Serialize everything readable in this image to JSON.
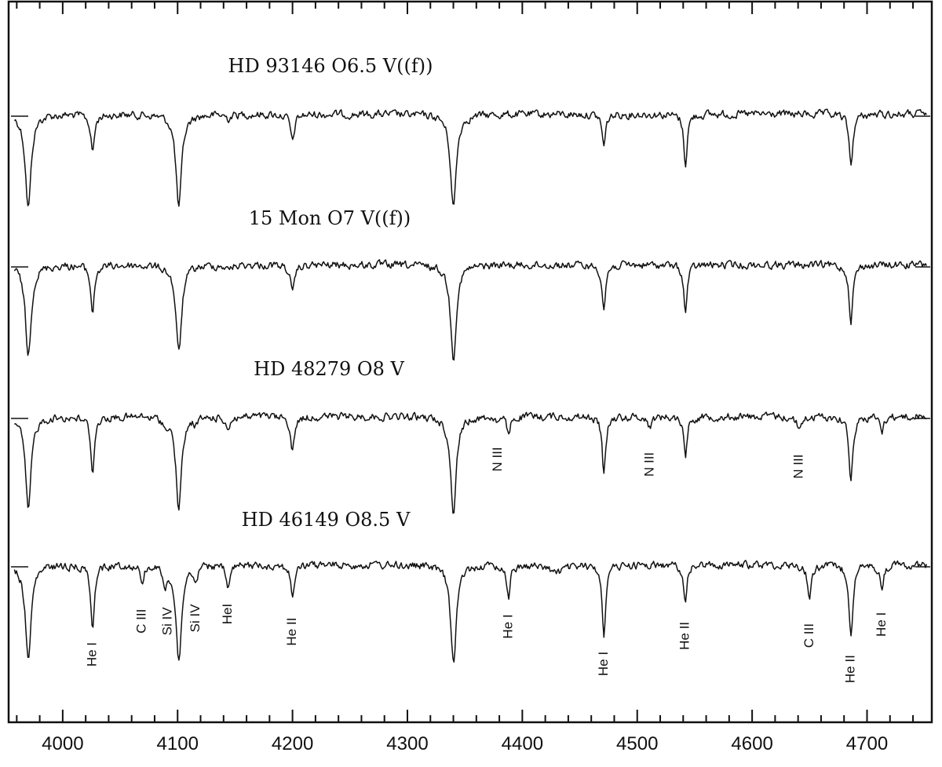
{
  "chart_data": {
    "type": "line",
    "xlim": [
      3955,
      4755
    ],
    "x_ticks": [
      4000,
      4100,
      4200,
      4300,
      4400,
      4500,
      4600,
      4700
    ],
    "x_tick_labels": [
      "4000",
      "4100",
      "4200",
      "4300",
      "4400",
      "4500",
      "4600",
      "4700"
    ],
    "xlabel": "",
    "ylabel": "",
    "grid": false,
    "series": [
      {
        "name": "HD 93146  O6.5 V((f))",
        "lines": [
          {
            "x": 3970,
            "depth": 0.9,
            "width": 3.0
          },
          {
            "x": 4026,
            "depth": 0.36,
            "width": 2.0
          },
          {
            "x": 4101,
            "depth": 0.9,
            "width": 3.0
          },
          {
            "x": 4144,
            "depth": 0.04,
            "width": 2.0
          },
          {
            "x": 4200,
            "depth": 0.27,
            "width": 2.0
          },
          {
            "x": 4340,
            "depth": 0.9,
            "width": 3.0
          },
          {
            "x": 4471,
            "depth": 0.31,
            "width": 1.8
          },
          {
            "x": 4542,
            "depth": 0.48,
            "width": 1.8
          },
          {
            "x": 4686,
            "depth": 0.49,
            "width": 2.0
          }
        ]
      },
      {
        "name": "15 Mon  O7 V((f))",
        "lines": [
          {
            "x": 3970,
            "depth": 0.88,
            "width": 3.0
          },
          {
            "x": 4026,
            "depth": 0.45,
            "width": 2.0
          },
          {
            "x": 4101,
            "depth": 0.85,
            "width": 3.0
          },
          {
            "x": 4144,
            "depth": 0.05,
            "width": 2.0
          },
          {
            "x": 4200,
            "depth": 0.29,
            "width": 2.0
          },
          {
            "x": 4340,
            "depth": 0.9,
            "width": 3.0
          },
          {
            "x": 4471,
            "depth": 0.43,
            "width": 1.8
          },
          {
            "x": 4542,
            "depth": 0.46,
            "width": 1.8
          },
          {
            "x": 4686,
            "depth": 0.53,
            "width": 2.0
          }
        ]
      },
      {
        "name": "HD 48279  O8 V",
        "lines": [
          {
            "x": 3970,
            "depth": 0.9,
            "width": 3.0
          },
          {
            "x": 4026,
            "depth": 0.52,
            "width": 2.0
          },
          {
            "x": 4089,
            "depth": 0.08,
            "width": 1.5
          },
          {
            "x": 4101,
            "depth": 0.88,
            "width": 3.0
          },
          {
            "x": 4116,
            "depth": 0.06,
            "width": 1.5
          },
          {
            "x": 4144,
            "depth": 0.12,
            "width": 2.0
          },
          {
            "x": 4200,
            "depth": 0.34,
            "width": 2.0
          },
          {
            "x": 4340,
            "depth": 0.92,
            "width": 3.0
          },
          {
            "x": 4379,
            "depth": 0.05,
            "width": 1.5
          },
          {
            "x": 4388,
            "depth": 0.18,
            "width": 1.8
          },
          {
            "x": 4471,
            "depth": 0.57,
            "width": 1.8
          },
          {
            "x": 4511,
            "depth": 0.1,
            "width": 2.0
          },
          {
            "x": 4542,
            "depth": 0.37,
            "width": 1.8
          },
          {
            "x": 4641,
            "depth": 0.12,
            "width": 2.5
          },
          {
            "x": 4686,
            "depth": 0.6,
            "width": 2.0
          },
          {
            "x": 4713,
            "depth": 0.16,
            "width": 1.6
          }
        ]
      },
      {
        "name": "HD 46149  O8.5 V",
        "lines": [
          {
            "x": 3970,
            "depth": 0.92,
            "width": 3.0
          },
          {
            "x": 4026,
            "depth": 0.57,
            "width": 2.0
          },
          {
            "x": 4069,
            "depth": 0.18,
            "width": 1.5
          },
          {
            "x": 4089,
            "depth": 0.2,
            "width": 1.5
          },
          {
            "x": 4101,
            "depth": 0.92,
            "width": 3.0
          },
          {
            "x": 4116,
            "depth": 0.17,
            "width": 1.5
          },
          {
            "x": 4144,
            "depth": 0.23,
            "width": 2.0
          },
          {
            "x": 4200,
            "depth": 0.3,
            "width": 2.0
          },
          {
            "x": 4340,
            "depth": 0.96,
            "width": 3.0
          },
          {
            "x": 4388,
            "depth": 0.3,
            "width": 1.8
          },
          {
            "x": 4430,
            "depth": 0.07,
            "width": 8.0
          },
          {
            "x": 4471,
            "depth": 0.66,
            "width": 1.8
          },
          {
            "x": 4542,
            "depth": 0.34,
            "width": 1.8
          },
          {
            "x": 4650,
            "depth": 0.32,
            "width": 2.0
          },
          {
            "x": 4686,
            "depth": 0.66,
            "width": 2.0
          },
          {
            "x": 4713,
            "depth": 0.28,
            "width": 1.6
          }
        ]
      }
    ],
    "annotations": [
      {
        "text": "N III",
        "x": 4379,
        "series": 2
      },
      {
        "text": "N III",
        "x": 4511,
        "series": 2
      },
      {
        "text": "N III",
        "x": 4641,
        "series": 2
      },
      {
        "text": "He I",
        "x": 4026,
        "series": 3
      },
      {
        "text": "C III",
        "x": 4069,
        "series": 3
      },
      {
        "text": "Si IV",
        "x": 4089,
        "series": 3
      },
      {
        "text": "Si IV",
        "x": 4116,
        "series": 3
      },
      {
        "text": "HeI",
        "x": 4144,
        "series": 3
      },
      {
        "text": "He II",
        "x": 4200,
        "series": 3
      },
      {
        "text": "He I",
        "x": 4388,
        "series": 3
      },
      {
        "text": "He I",
        "x": 4471,
        "series": 3
      },
      {
        "text": "He II",
        "x": 4542,
        "series": 3
      },
      {
        "text": "C III",
        "x": 4650,
        "series": 3
      },
      {
        "text": "He II",
        "x": 4686,
        "series": 3
      },
      {
        "text": "He I",
        "x": 4713,
        "series": 3
      }
    ]
  }
}
